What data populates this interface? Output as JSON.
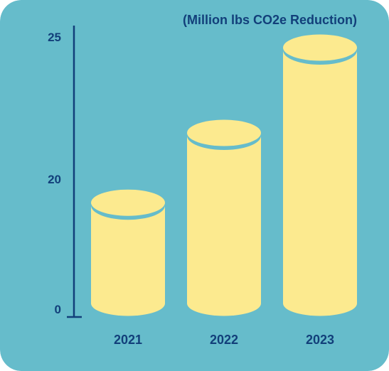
{
  "chart_data": {
    "type": "bar",
    "style": "cylinder",
    "title": "(Million lbs CO2e Reduction)",
    "categories": [
      "2021",
      "2022",
      "2023"
    ],
    "values": [
      18,
      22,
      25
    ],
    "yticks": [
      "0",
      "20",
      "25"
    ],
    "xlabel": "",
    "ylabel": "",
    "grid": false,
    "legend": "none"
  },
  "colors": {
    "background": "#66bccb",
    "bar": "#fcea8f",
    "bar_top_rim": "#66bccb",
    "text": "#123f7a",
    "axis": "#123f7a"
  }
}
